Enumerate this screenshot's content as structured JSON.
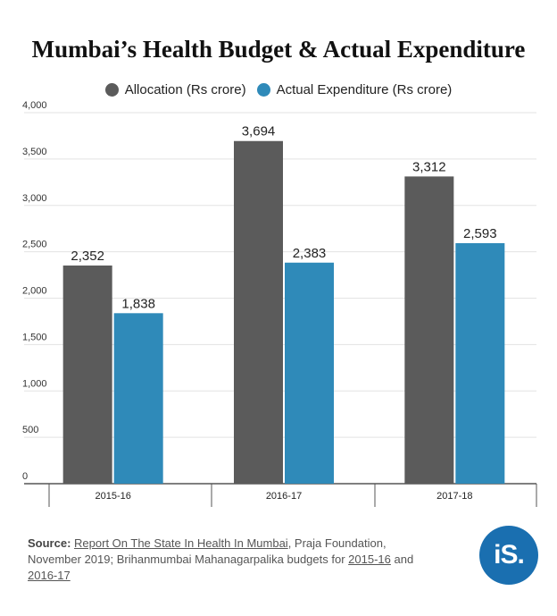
{
  "colors": {
    "allocation": "#5b5b5b",
    "expenditure": "#2f8ab9",
    "grid": "#e3e3e3",
    "axis": "#555555",
    "logo": "#1a6fb0"
  },
  "chart_data": {
    "type": "bar",
    "title": "Mumbai’s Health Budget & Actual Expenditure",
    "categories": [
      "2015-16",
      "2016-17",
      "2017-18"
    ],
    "series": [
      {
        "name": "Allocation (Rs crore)",
        "values": [
          2352,
          3694,
          3312
        ],
        "labels": [
          "2,352",
          "3,694",
          "3,312"
        ]
      },
      {
        "name": "Actual Expenditure (Rs crore)",
        "values": [
          1838,
          2383,
          2593
        ],
        "labels": [
          "1,838",
          "2,383",
          "2,593"
        ]
      }
    ],
    "yticks": [
      0,
      500,
      1000,
      1500,
      2000,
      2500,
      3000,
      3500,
      4000
    ],
    "ytick_labels": [
      "0",
      "500",
      "1,000",
      "1,500",
      "2,000",
      "2,500",
      "3,000",
      "3,500",
      "4,000"
    ],
    "ylim": [
      0,
      4000
    ],
    "grid": true,
    "legend_position": "top"
  },
  "source": {
    "label": "Source:",
    "link1": "Report On The State In Health In Mumbai",
    "text1": ", Praja Foundation, November 2019; Brihanmumbai Mahanagarpalika budgets for ",
    "link2": "2015-16",
    "text2": " and ",
    "link3": "2016-17"
  },
  "logo": {
    "text": "iS."
  }
}
